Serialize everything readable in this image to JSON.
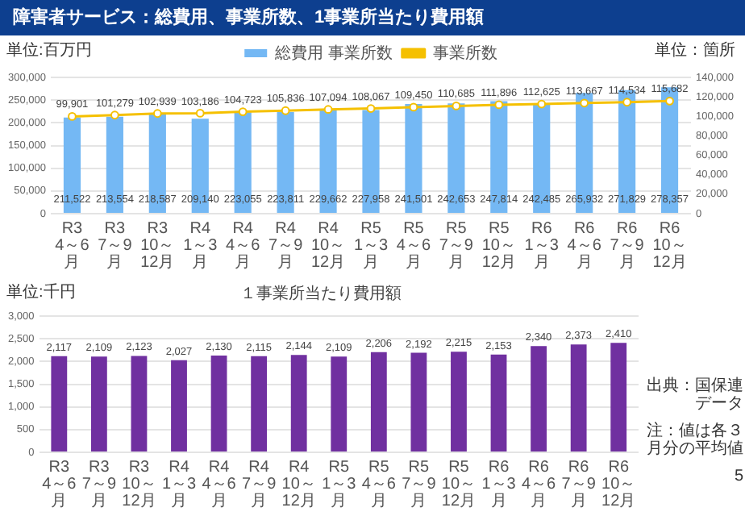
{
  "chart_data": [
    {
      "type": "bar",
      "title": "障害者サービス：総費用、事業所数、1事業所当たり費用額",
      "ylabel": "単位:百万円",
      "y2label": "単位：箇所",
      "categories": [
        "R3 4～6月",
        "R3 7～9月",
        "R3 10～12月",
        "R4 1～3月",
        "R4 4～6月",
        "R4 7～9月",
        "R4 10～12月",
        "R5 1～3月",
        "R5 4～6月",
        "R5 7～9月",
        "R5 10～12月",
        "R6 1～3月",
        "R6 4～6月",
        "R6 7～9月",
        "R6 10～12月"
      ],
      "series": [
        {
          "type": "bar",
          "name": "総費用 事業所数",
          "color": "#74b8f4",
          "values": [
            211522,
            213554,
            218587,
            209140,
            223055,
            223811,
            229662,
            227958,
            241501,
            242653,
            247814,
            242485,
            265932,
            271829,
            278357
          ],
          "value_labels": [
            "211,522",
            "213,554",
            "218,587",
            "209,140",
            "223,055",
            "223,811",
            "229,662",
            "227,958",
            "241,501",
            "242,653",
            "247,814",
            "242,485",
            "265,932",
            "271,829",
            "278,357"
          ]
        },
        {
          "type": "line",
          "name": "事業所数",
          "color": "#f5c000",
          "axis": "y2",
          "values": [
            99901,
            101279,
            102939,
            103186,
            104723,
            105836,
            107094,
            108067,
            109450,
            110685,
            111896,
            112625,
            113667,
            114534,
            115682
          ],
          "value_labels": [
            "99,901",
            "101,279",
            "102,939",
            "103,186",
            "104,723",
            "105,836",
            "107,094",
            "108,067",
            "109,450",
            "110,685",
            "111,896",
            "112,625",
            "113,667",
            "114,534",
            "115,682"
          ]
        }
      ],
      "ylim": [
        0,
        300000
      ],
      "yticks": [
        {
          "value": 0,
          "label": "0"
        },
        {
          "value": 50000,
          "label": "50,000"
        },
        {
          "value": 100000,
          "label": "100,000"
        },
        {
          "value": 150000,
          "label": "150,000"
        },
        {
          "value": 200000,
          "label": "200,000"
        },
        {
          "value": 250000,
          "label": "250,000"
        },
        {
          "value": 300000,
          "label": "300,000"
        }
      ],
      "y2lim": [
        0,
        140000
      ],
      "y2ticks": [
        {
          "value": 0,
          "label": "0"
        },
        {
          "value": 20000,
          "label": "20,000"
        },
        {
          "value": 40000,
          "label": "40,000"
        },
        {
          "value": 60000,
          "label": "60,000"
        },
        {
          "value": 80000,
          "label": "80,000"
        },
        {
          "value": 100000,
          "label": "100,000"
        },
        {
          "value": 120000,
          "label": "120,000"
        },
        {
          "value": 140000,
          "label": "140,000"
        }
      ],
      "grid": "y",
      "legend": "top",
      "marker": "circle"
    },
    {
      "type": "bar",
      "title": "１事業所当たり費用額",
      "ylabel": "単位:千円",
      "categories": [
        "R3 4～6月",
        "R3 7～9月",
        "R3 10～12月",
        "R4 1～3月",
        "R4 4～6月",
        "R4 7～9月",
        "R4 10～12月",
        "R5 1～3月",
        "R5 4～6月",
        "R5 7～9月",
        "R5 10～12月",
        "R6 1～3月",
        "R6 4～6月",
        "R6 7～9月",
        "R6 10～12月"
      ],
      "series": [
        {
          "color": "#7030a0",
          "values": [
            2117,
            2109,
            2123,
            2027,
            2130,
            2115,
            2144,
            2109,
            2206,
            2192,
            2215,
            2153,
            2340,
            2373,
            2410
          ],
          "value_labels": [
            "2,117",
            "2,109",
            "2,123",
            "2,027",
            "2,130",
            "2,115",
            "2,144",
            "2,109",
            "2,206",
            "2,192",
            "2,215",
            "2,153",
            "2,340",
            "2,373",
            "2,410"
          ]
        }
      ],
      "ylim": [
        0,
        3000
      ],
      "yticks": [
        {
          "value": 0,
          "label": "0"
        },
        500,
        {
          "value": 1000,
          "label": "1,000"
        },
        {
          "value": 1500,
          "label": "1,500"
        },
        {
          "value": 2000,
          "label": "2,000"
        },
        {
          "value": 2500,
          "label": "2,500"
        },
        {
          "value": 3000,
          "label": "3,000"
        }
      ],
      "grid": "y",
      "annotations": [
        "出典：国保連データ",
        "注：値は各３月分の平均値",
        "5"
      ]
    }
  ]
}
